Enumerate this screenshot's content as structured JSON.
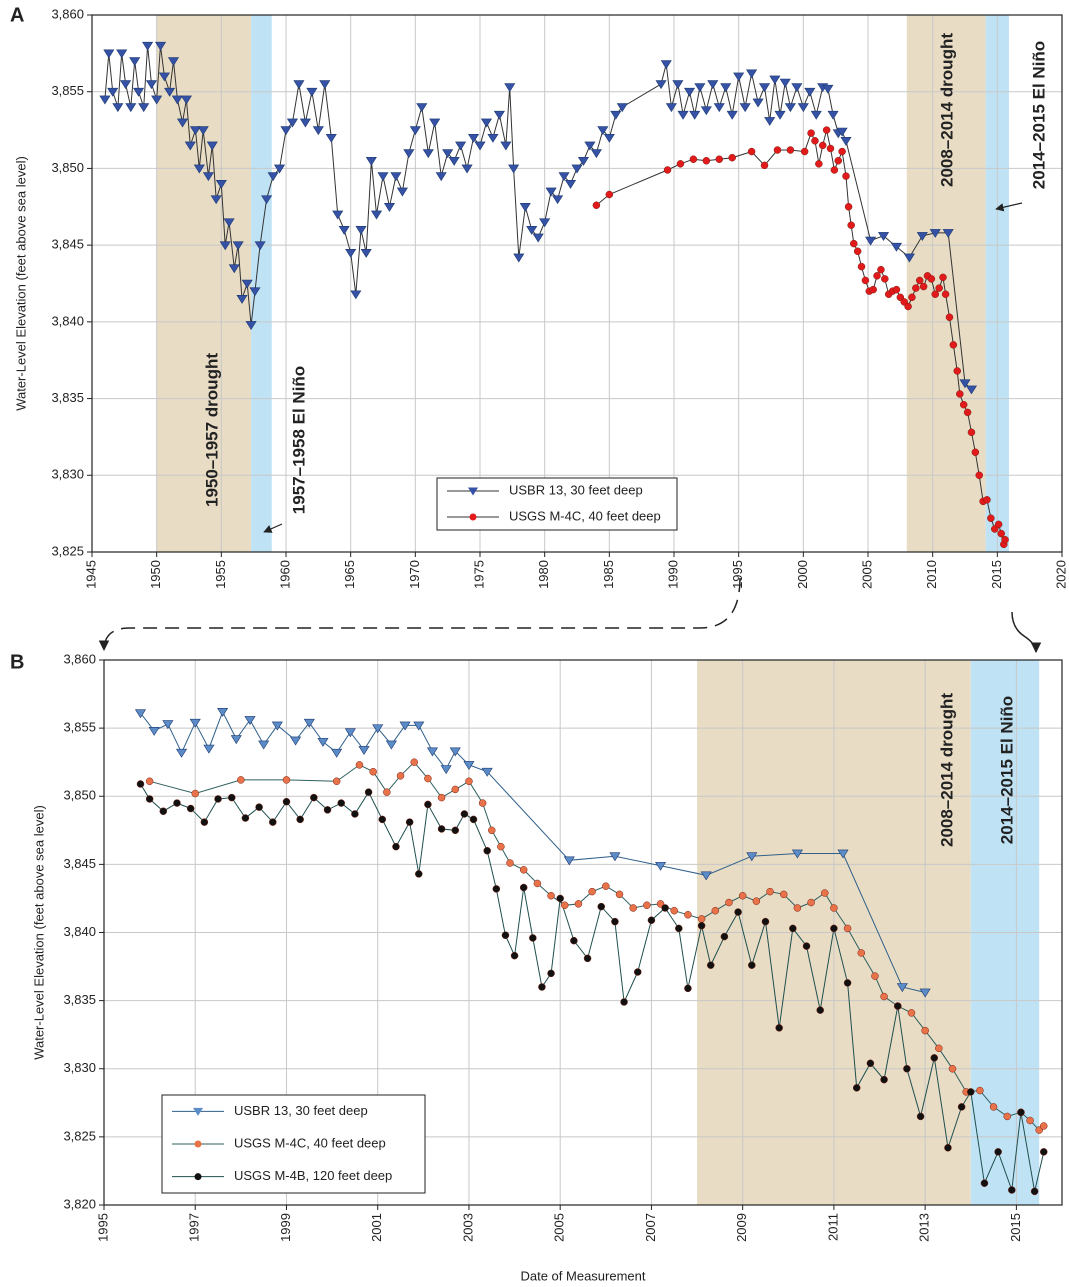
{
  "chart_data": [
    {
      "type": "line",
      "panel": "A",
      "y_label": "Water-Level Elevation (feet above sea level)",
      "xlim": [
        1945,
        2020
      ],
      "xticks": [
        1945,
        1950,
        1955,
        1960,
        1965,
        1970,
        1975,
        1980,
        1985,
        1990,
        1995,
        2000,
        2005,
        2010,
        2015,
        2020
      ],
      "ylim": [
        3825,
        3860
      ],
      "yticks": [
        {
          "value": 3825,
          "label": "3,825"
        },
        {
          "value": 3830,
          "label": "3,830"
        },
        {
          "value": 3835,
          "label": "3,835"
        },
        {
          "value": 3840,
          "label": "3,840"
        },
        {
          "value": 3845,
          "label": "3,845"
        },
        {
          "value": 3850,
          "label": "3,850"
        },
        {
          "value": 3855,
          "label": "3,855"
        },
        {
          "value": 3860,
          "label": "3,860"
        }
      ],
      "grid": true,
      "legend": "bottom-center",
      "shaded_periods": [
        {
          "start": 1950,
          "end": 1957.3,
          "color": "#e8dcc4",
          "label": "1950–1957 drought"
        },
        {
          "start": 1957.3,
          "end": 1958.9,
          "color": "#bfe3f5",
          "label": "1957–1958 El Niño"
        },
        {
          "start": 2008,
          "end": 2014.1,
          "color": "#e8dcc4",
          "label": "2008–2014 drought"
        },
        {
          "start": 2014.1,
          "end": 2015.9,
          "color": "#bfe3f5",
          "label": "2014–2015 El Niño"
        }
      ],
      "series": [
        {
          "name": "USBR 13, 30 feet deep",
          "color": "#3552a6",
          "line_color": "#333333",
          "marker": "triangle",
          "x": [
            1946.0,
            1946.3,
            1946.6,
            1947.0,
            1947.3,
            1947.6,
            1948.0,
            1948.3,
            1948.6,
            1949.0,
            1949.3,
            1949.6,
            1950.0,
            1950.3,
            1950.6,
            1951.0,
            1951.3,
            1951.6,
            1952.0,
            1952.3,
            1952.6,
            1953.0,
            1953.3,
            1953.6,
            1954.0,
            1954.3,
            1954.6,
            1955.0,
            1955.3,
            1955.6,
            1956.0,
            1956.3,
            1956.6,
            1957.0,
            1957.3,
            1957.6,
            1958.0,
            1958.5,
            1959.0,
            1959.5,
            1960.0,
            1960.5,
            1961.0,
            1961.5,
            1962.0,
            1962.5,
            1963.0,
            1963.5,
            1964.0,
            1964.5,
            1965.0,
            1965.4,
            1965.8,
            1966.2,
            1966.6,
            1967.0,
            1967.5,
            1968.0,
            1968.5,
            1969.0,
            1969.5,
            1970.0,
            1970.5,
            1971.0,
            1971.5,
            1972.0,
            1972.5,
            1973.0,
            1973.5,
            1974.0,
            1974.5,
            1975.0,
            1975.5,
            1976.0,
            1976.5,
            1977.0,
            1977.3,
            1977.6,
            1978.0,
            1978.5,
            1979.0,
            1979.5,
            1980.0,
            1980.5,
            1981.0,
            1981.5,
            1982.0,
            1982.5,
            1983.0,
            1983.5,
            1984.0,
            1984.5,
            1985.0,
            1985.5,
            1986.0,
            1989.0,
            1989.4,
            1989.8,
            1990.3,
            1990.7,
            1991.2,
            1991.6,
            1992.0,
            1992.5,
            1993.0,
            1993.5,
            1994.0,
            1994.5,
            1995.0,
            1995.5,
            1996.0,
            1996.5,
            1997.0,
            1997.4,
            1997.8,
            1998.2,
            1998.6,
            1999.0,
            1999.5,
            2000.0,
            2000.5,
            2001.0,
            2001.5,
            2001.9,
            2002.3,
            2002.7,
            2003.0,
            2003.3,
            2005.2,
            2006.2,
            2007.2,
            2008.2,
            2009.2,
            2010.2,
            2011.2,
            2012.5,
            2013.0
          ],
          "values": [
            3854.5,
            3857.5,
            3855,
            3854,
            3857.5,
            3855.5,
            3854,
            3857,
            3855,
            3854,
            3858,
            3855.5,
            3854.5,
            3858,
            3856,
            3855,
            3857,
            3854.5,
            3853,
            3854.5,
            3851.5,
            3852.5,
            3850,
            3852.5,
            3849.5,
            3851.5,
            3848,
            3849,
            3845,
            3846.5,
            3843.5,
            3845,
            3841.5,
            3842.5,
            3839.8,
            3842,
            3845,
            3848,
            3849.5,
            3850,
            3852.5,
            3853,
            3855.5,
            3853,
            3855,
            3852.5,
            3855.5,
            3852,
            3847,
            3846,
            3844.5,
            3841.8,
            3846,
            3844.5,
            3850.5,
            3847,
            3849.5,
            3847.5,
            3849.5,
            3848.5,
            3851,
            3852.5,
            3854,
            3851,
            3853,
            3849.5,
            3851,
            3850.5,
            3851.5,
            3850,
            3852,
            3851.5,
            3853,
            3852,
            3853.5,
            3851.5,
            3855.3,
            3850,
            3844.2,
            3847.5,
            3846,
            3845.5,
            3846.5,
            3848.5,
            3848,
            3849.5,
            3849,
            3850,
            3850.5,
            3851.5,
            3851,
            3852.5,
            3852,
            3853.5,
            3854,
            3855.5,
            3856.8,
            3854,
            3855.5,
            3853.5,
            3855,
            3853.5,
            3855.3,
            3853.8,
            3855.5,
            3854,
            3855.3,
            3853.5,
            3856,
            3854,
            3856.2,
            3854.3,
            3855.3,
            3853.1,
            3855.8,
            3853.5,
            3855.6,
            3854,
            3855.3,
            3854,
            3855,
            3853.5,
            3855.3,
            3855.2,
            3853.5,
            3852.3,
            3852.4,
            3851.8,
            3845.3,
            3845.6,
            3844.9,
            3844.2,
            3845.6,
            3845.8,
            3845.8,
            3836.0,
            3835.6
          ]
        },
        {
          "name": "USGS M-4C, 40 feet deep",
          "color": "#e31a1c",
          "line_color": "#333333",
          "marker": "circle",
          "x": [
            1984.0,
            1985.0,
            1989.5,
            1990.5,
            1991.5,
            1992.5,
            1993.5,
            1994.5,
            1996.0,
            1997.0,
            1998.0,
            1999.0,
            2000.1,
            2000.6,
            2000.9,
            2001.2,
            2001.5,
            2001.8,
            2002.1,
            2002.4,
            2002.7,
            2003.0,
            2003.3,
            2003.5,
            2003.7,
            2003.9,
            2004.2,
            2004.5,
            2004.8,
            2005.1,
            2005.4,
            2005.7,
            2006.0,
            2006.3,
            2006.6,
            2006.9,
            2007.2,
            2007.5,
            2007.8,
            2008.1,
            2008.4,
            2008.7,
            2009.0,
            2009.3,
            2009.6,
            2009.9,
            2010.2,
            2010.5,
            2010.8,
            2011.0,
            2011.3,
            2011.6,
            2011.9,
            2012.1,
            2012.4,
            2012.7,
            2013.0,
            2013.3,
            2013.6,
            2013.9,
            2014.2,
            2014.5,
            2014.8,
            2015.1,
            2015.3,
            2015.5,
            2015.6
          ],
          "values": [
            3847.6,
            3848.3,
            3849.9,
            3850.3,
            3850.6,
            3850.5,
            3850.6,
            3850.7,
            3851.1,
            3850.2,
            3851.2,
            3851.2,
            3851.1,
            3852.3,
            3851.8,
            3850.3,
            3851.5,
            3852.5,
            3851.3,
            3849.9,
            3850.5,
            3851.1,
            3849.5,
            3847.5,
            3846.3,
            3845.1,
            3844.6,
            3843.6,
            3842.7,
            3842.0,
            3842.1,
            3843.0,
            3843.4,
            3842.8,
            3841.8,
            3842.0,
            3842.1,
            3841.6,
            3841.3,
            3841.0,
            3841.6,
            3842.2,
            3842.7,
            3842.3,
            3843.0,
            3842.8,
            3841.8,
            3842.2,
            3842.9,
            3841.8,
            3840.3,
            3838.5,
            3836.8,
            3835.3,
            3834.6,
            3834.1,
            3832.8,
            3831.5,
            3830.0,
            3828.3,
            3828.4,
            3827.2,
            3826.5,
            3826.8,
            3826.2,
            3825.5,
            3825.8
          ]
        }
      ]
    },
    {
      "type": "line",
      "panel": "B",
      "y_label": "Water-Level Elevation (feet above sea level)",
      "x_label": "Date of Measurement",
      "xlim": [
        1995,
        2016
      ],
      "xticks": [
        1995,
        1997,
        1999,
        2001,
        2003,
        2005,
        2007,
        2009,
        2011,
        2013,
        2015
      ],
      "ylim": [
        3820,
        3860
      ],
      "yticks": [
        {
          "value": 3820,
          "label": "3,820"
        },
        {
          "value": 3825,
          "label": "3,825"
        },
        {
          "value": 3830,
          "label": "3,830"
        },
        {
          "value": 3835,
          "label": "3,835"
        },
        {
          "value": 3840,
          "label": "3,840"
        },
        {
          "value": 3845,
          "label": "3,845"
        },
        {
          "value": 3850,
          "label": "3,850"
        },
        {
          "value": 3855,
          "label": "3,855"
        },
        {
          "value": 3860,
          "label": "3,860"
        }
      ],
      "grid": true,
      "legend": "bottom-left",
      "shaded_periods": [
        {
          "start": 2008,
          "end": 2014,
          "color": "#e8dcc4",
          "label": "2008–2014 drought"
        },
        {
          "start": 2014,
          "end": 2015.5,
          "color": "#bfe3f5",
          "label": "2014–2015 El Niño"
        }
      ],
      "series": [
        {
          "name": "USBR 13, 30 feet deep",
          "color": "#5b8cc8",
          "line_color": "#2f5f8a",
          "marker": "triangle",
          "x": [
            1995.8,
            1996.1,
            1996.4,
            1996.7,
            1997.0,
            1997.3,
            1997.6,
            1997.9,
            1998.2,
            1998.5,
            1998.8,
            1999.2,
            1999.5,
            1999.8,
            2000.1,
            2000.4,
            2000.7,
            2001.0,
            2001.3,
            2001.6,
            2001.9,
            2002.2,
            2002.5,
            2002.7,
            2003.0,
            2003.4,
            2005.2,
            2006.2,
            2007.2,
            2008.2,
            2009.2,
            2010.2,
            2011.2,
            2012.5,
            2013.0
          ],
          "values": [
            3856.1,
            3854.8,
            3855.3,
            3853.2,
            3855.4,
            3853.5,
            3856.2,
            3854.2,
            3855.6,
            3853.8,
            3855.2,
            3854.1,
            3855.4,
            3854.0,
            3853.2,
            3854.7,
            3853.4,
            3855.0,
            3853.8,
            3855.2,
            3855.2,
            3853.3,
            3852.0,
            3853.3,
            3852.3,
            3851.8,
            3845.3,
            3845.6,
            3844.9,
            3844.2,
            3845.6,
            3845.8,
            3845.8,
            3836.0,
            3835.6
          ]
        },
        {
          "name": "USGS M-4C, 40 feet deep",
          "color": "#e8734a",
          "line_color": "#2f5f5f",
          "marker": "circle",
          "x": [
            1996.0,
            1997.0,
            1998.0,
            1999.0,
            2000.1,
            2000.6,
            2000.9,
            2001.2,
            2001.5,
            2001.8,
            2002.1,
            2002.4,
            2002.7,
            2003.0,
            2003.3,
            2003.5,
            2003.7,
            2003.9,
            2004.2,
            2004.5,
            2004.8,
            2005.1,
            2005.4,
            2005.7,
            2006.0,
            2006.3,
            2006.6,
            2006.9,
            2007.2,
            2007.5,
            2007.8,
            2008.1,
            2008.4,
            2008.7,
            2009.0,
            2009.3,
            2009.6,
            2009.9,
            2010.2,
            2010.5,
            2010.8,
            2011.0,
            2011.3,
            2011.6,
            2011.9,
            2012.1,
            2012.4,
            2012.7,
            2013.0,
            2013.3,
            2013.6,
            2013.9,
            2014.2,
            2014.5,
            2014.8,
            2015.1,
            2015.3,
            2015.5,
            2015.6
          ],
          "values": [
            3851.1,
            3850.2,
            3851.2,
            3851.2,
            3851.1,
            3852.3,
            3851.8,
            3850.3,
            3851.5,
            3852.5,
            3851.3,
            3849.9,
            3850.5,
            3851.1,
            3849.5,
            3847.5,
            3846.3,
            3845.1,
            3844.6,
            3843.6,
            3842.7,
            3842.0,
            3842.1,
            3843.0,
            3843.4,
            3842.8,
            3841.8,
            3842.0,
            3842.1,
            3841.6,
            3841.3,
            3841.0,
            3841.6,
            3842.2,
            3842.7,
            3842.3,
            3843.0,
            3842.8,
            3841.8,
            3842.2,
            3842.9,
            3841.8,
            3840.3,
            3838.5,
            3836.8,
            3835.3,
            3834.6,
            3834.1,
            3832.8,
            3831.5,
            3830.0,
            3828.3,
            3828.4,
            3827.2,
            3826.5,
            3826.8,
            3826.2,
            3825.5,
            3825.8
          ]
        },
        {
          "name": "USGS M-4B, 120 feet deep",
          "color": "#111111",
          "line_color": "#1f4f4f",
          "marker": "circle",
          "x": [
            1995.8,
            1996.0,
            1996.3,
            1996.6,
            1996.9,
            1997.2,
            1997.5,
            1997.8,
            1998.1,
            1998.4,
            1998.7,
            1999.0,
            1999.3,
            1999.6,
            1999.9,
            2000.2,
            2000.5,
            2000.8,
            2001.1,
            2001.4,
            2001.7,
            2001.9,
            2002.1,
            2002.4,
            2002.7,
            2002.9,
            2003.1,
            2003.4,
            2003.6,
            2003.8,
            2004.0,
            2004.2,
            2004.4,
            2004.6,
            2004.8,
            2005.0,
            2005.3,
            2005.6,
            2005.9,
            2006.2,
            2006.4,
            2006.7,
            2007.0,
            2007.3,
            2007.6,
            2007.8,
            2008.1,
            2008.3,
            2008.6,
            2008.9,
            2009.2,
            2009.5,
            2009.8,
            2010.1,
            2010.4,
            2010.7,
            2011.0,
            2011.3,
            2011.5,
            2011.8,
            2012.1,
            2012.4,
            2012.6,
            2012.9,
            2013.2,
            2013.5,
            2013.8,
            2014.0,
            2014.3,
            2014.6,
            2014.9,
            2015.1,
            2015.4,
            2015.6
          ],
          "values": [
            3850.9,
            3849.8,
            3848.9,
            3849.5,
            3849.1,
            3848.1,
            3849.8,
            3849.9,
            3848.4,
            3849.2,
            3848.1,
            3849.6,
            3848.3,
            3849.9,
            3849.0,
            3849.5,
            3848.7,
            3850.3,
            3848.3,
            3846.3,
            3848.1,
            3844.3,
            3849.4,
            3847.6,
            3847.5,
            3848.7,
            3848.3,
            3846.0,
            3843.2,
            3839.8,
            3838.3,
            3843.3,
            3839.6,
            3836.0,
            3837.0,
            3842.5,
            3839.4,
            3838.1,
            3841.9,
            3840.8,
            3834.9,
            3837.1,
            3840.9,
            3841.8,
            3840.3,
            3835.9,
            3840.5,
            3837.6,
            3839.7,
            3841.5,
            3837.6,
            3840.8,
            3833.0,
            3840.3,
            3839.0,
            3834.3,
            3840.3,
            3836.3,
            3828.6,
            3830.4,
            3829.2,
            3834.6,
            3830.0,
            3826.5,
            3830.8,
            3824.2,
            3827.2,
            3828.3,
            3821.6,
            3823.9,
            3821.1,
            3826.8,
            3821.0,
            3823.9
          ]
        }
      ]
    }
  ]
}
